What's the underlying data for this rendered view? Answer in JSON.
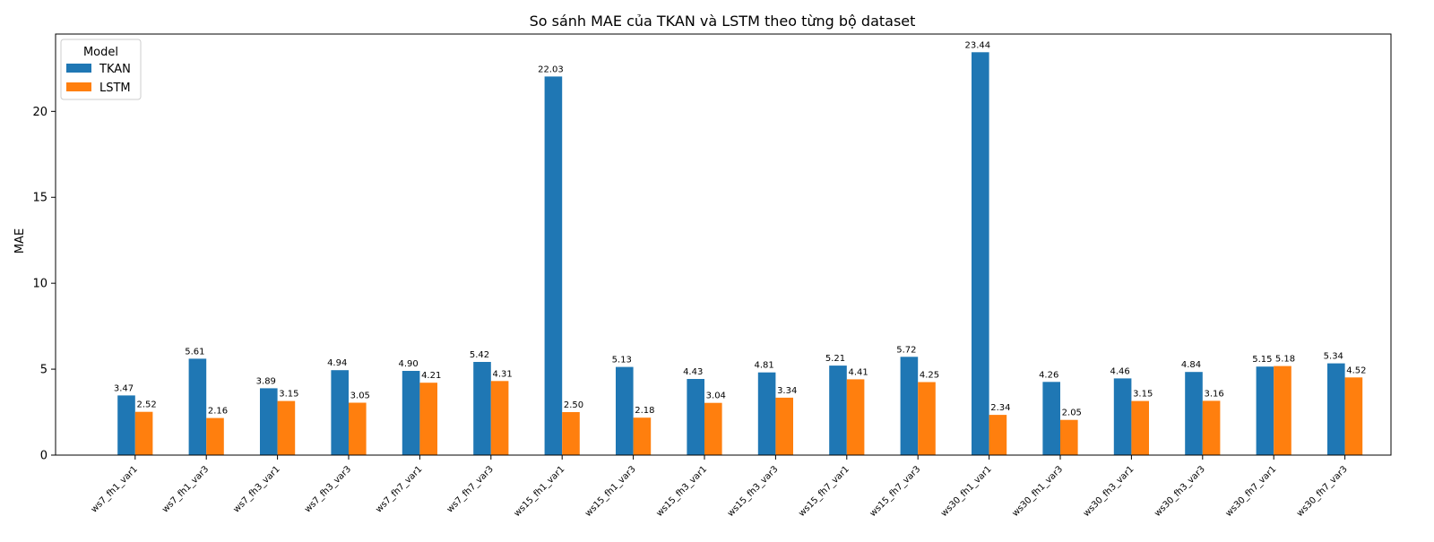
{
  "chart_data": {
    "type": "bar",
    "title": "So sánh MAE của TKAN và LSTM theo từng bộ dataset",
    "xlabel": "",
    "ylabel": "MAE",
    "ylim": [
      0,
      24.5
    ],
    "yticks": [
      0,
      5,
      10,
      15,
      20
    ],
    "grid": false,
    "categories": [
      "ws7_fh1_var1",
      "ws7_fh1_var3",
      "ws7_fh3_var1",
      "ws7_fh3_var3",
      "ws7_fh7_var1",
      "ws7_fh7_var3",
      "ws15_fh1_var1",
      "ws15_fh1_var3",
      "ws15_fh3_var1",
      "ws15_fh3_var3",
      "ws15_fh7_var1",
      "ws15_fh7_var3",
      "ws30_fh1_var1",
      "ws30_fh1_var3",
      "ws30_fh3_var1",
      "ws30_fh3_var3",
      "ws30_fh7_var1",
      "ws30_fh7_var3"
    ],
    "series": [
      {
        "name": "TKAN",
        "color": "#1f77b4",
        "values": [
          3.47,
          5.61,
          3.89,
          4.94,
          4.9,
          5.42,
          22.03,
          5.13,
          4.43,
          4.81,
          5.21,
          5.72,
          23.44,
          4.26,
          4.46,
          4.84,
          5.15,
          5.34
        ]
      },
      {
        "name": "LSTM",
        "color": "#ff7f0e",
        "values": [
          2.52,
          2.16,
          3.15,
          3.05,
          4.21,
          4.31,
          2.5,
          2.18,
          3.04,
          3.34,
          4.41,
          4.25,
          2.34,
          2.05,
          3.15,
          3.16,
          5.18,
          4.52
        ]
      }
    ],
    "legend": {
      "title": "Model",
      "position": "top-left"
    }
  }
}
